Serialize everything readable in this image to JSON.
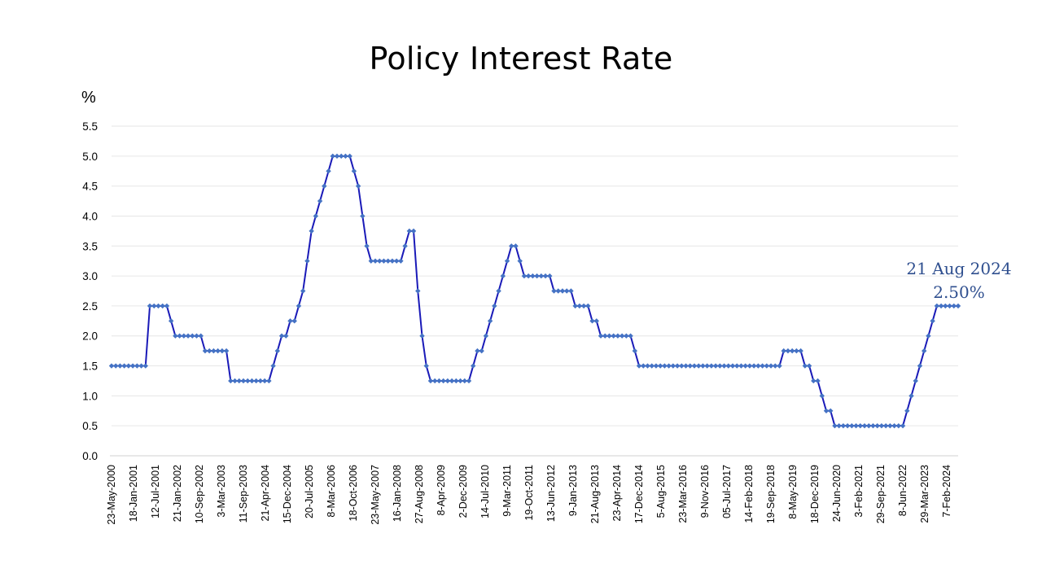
{
  "chart_data": {
    "type": "line",
    "title": "Policy Interest Rate",
    "ylabel": "%",
    "xlabel": "",
    "ylim": [
      0,
      5.5
    ],
    "y_ticks": [
      "0.0",
      "0.5",
      "1.0",
      "1.5",
      "2.0",
      "2.5",
      "3.0",
      "3.5",
      "4.0",
      "4.5",
      "5.0",
      "5.5"
    ],
    "x_tick_labels": [
      "23-May-2000",
      "18-Jan-2001",
      "12-Jul-2001",
      "21-Jan-2002",
      "10-Sep-2002",
      "3-Mar-2003",
      "11-Sep-2003",
      "21-Apr-2004",
      "15-Dec-2004",
      "20-Jul-2005",
      "8-Mar-2006",
      "18-Oct-2006",
      "23-May-2007",
      "16-Jan-2008",
      "27-Aug-2008",
      "8-Apr-2009",
      "2-Dec-2009",
      "14-Jul-2010",
      "9-Mar-2011",
      "19-Oct-2011",
      "13-Jun-2012",
      "9-Jan-2013",
      "21-Aug-2013",
      "23-Apr-2014",
      "17-Dec-2014",
      "5-Aug-2015",
      "23-Mar-2016",
      "9-Nov-2016",
      "05-Jul-2017",
      "14-Feb-2018",
      "19-Sep-2018",
      "8-May-2019",
      "18-Dec-2019",
      "24-Jun-2020",
      "3-Feb-2021",
      "29-Sep-2021",
      "8-Jun-2022",
      "29-Mar-2023",
      "7-Feb-2024"
    ],
    "grid": true,
    "series": [
      {
        "color": "#1a1ab8",
        "marker_color": "#4472c4",
        "values": [
          1.5,
          1.5,
          1.5,
          1.5,
          1.5,
          1.5,
          1.5,
          1.5,
          1.5,
          2.5,
          2.5,
          2.5,
          2.5,
          2.5,
          2.25,
          2.0,
          2.0,
          2.0,
          2.0,
          2.0,
          2.0,
          2.0,
          1.75,
          1.75,
          1.75,
          1.75,
          1.75,
          1.75,
          1.25,
          1.25,
          1.25,
          1.25,
          1.25,
          1.25,
          1.25,
          1.25,
          1.25,
          1.25,
          1.5,
          1.75,
          2.0,
          2.0,
          2.25,
          2.25,
          2.5,
          2.75,
          3.25,
          3.75,
          4.0,
          4.25,
          4.5,
          4.75,
          5.0,
          5.0,
          5.0,
          5.0,
          5.0,
          4.75,
          4.5,
          4.0,
          3.5,
          3.25,
          3.25,
          3.25,
          3.25,
          3.25,
          3.25,
          3.25,
          3.25,
          3.5,
          3.75,
          3.75,
          2.75,
          2.0,
          1.5,
          1.25,
          1.25,
          1.25,
          1.25,
          1.25,
          1.25,
          1.25,
          1.25,
          1.25,
          1.25,
          1.5,
          1.75,
          1.75,
          2.0,
          2.25,
          2.5,
          2.75,
          3.0,
          3.25,
          3.5,
          3.5,
          3.25,
          3.0,
          3.0,
          3.0,
          3.0,
          3.0,
          3.0,
          3.0,
          2.75,
          2.75,
          2.75,
          2.75,
          2.75,
          2.5,
          2.5,
          2.5,
          2.5,
          2.25,
          2.25,
          2.0,
          2.0,
          2.0,
          2.0,
          2.0,
          2.0,
          2.0,
          2.0,
          1.75,
          1.5,
          1.5,
          1.5,
          1.5,
          1.5,
          1.5,
          1.5,
          1.5,
          1.5,
          1.5,
          1.5,
          1.5,
          1.5,
          1.5,
          1.5,
          1.5,
          1.5,
          1.5,
          1.5,
          1.5,
          1.5,
          1.5,
          1.5,
          1.5,
          1.5,
          1.5,
          1.5,
          1.5,
          1.5,
          1.5,
          1.5,
          1.5,
          1.5,
          1.5,
          1.75,
          1.75,
          1.75,
          1.75,
          1.75,
          1.5,
          1.5,
          1.25,
          1.25,
          1.0,
          0.75,
          0.75,
          0.5,
          0.5,
          0.5,
          0.5,
          0.5,
          0.5,
          0.5,
          0.5,
          0.5,
          0.5,
          0.5,
          0.5,
          0.5,
          0.5,
          0.5,
          0.5,
          0.5,
          0.75,
          1.0,
          1.25,
          1.5,
          1.75,
          2.0,
          2.25,
          2.5,
          2.5,
          2.5,
          2.5,
          2.5,
          2.5
        ]
      }
    ],
    "annotation": {
      "line1": "21 Aug 2024",
      "line2": "2.50%"
    }
  }
}
